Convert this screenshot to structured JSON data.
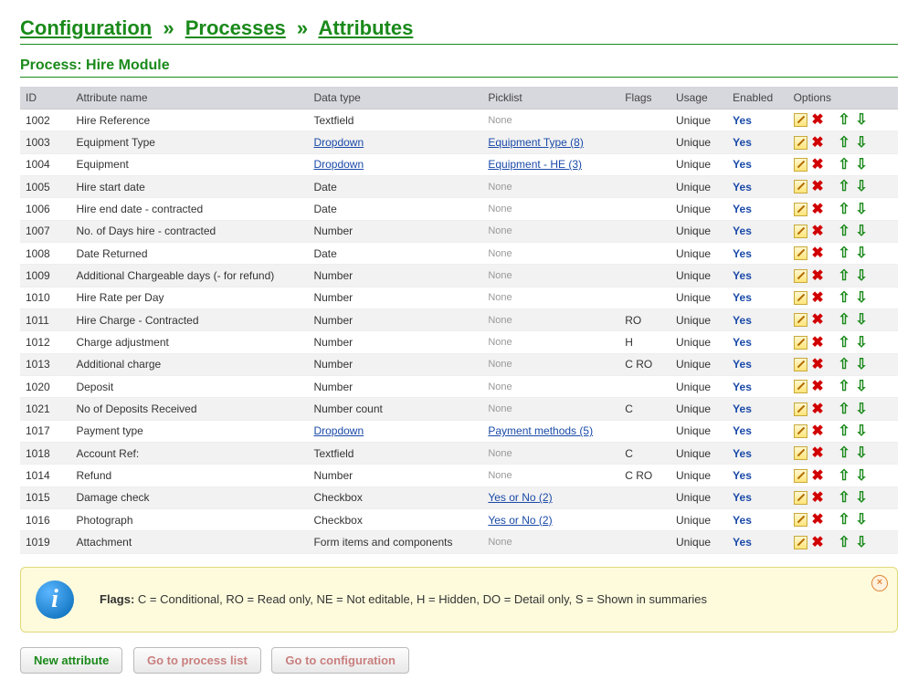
{
  "breadcrumb": {
    "items": [
      "Configuration",
      "Processes",
      "Attributes"
    ],
    "separator": "»"
  },
  "subheader": "Process: Hire Module",
  "table": {
    "headers": {
      "id": "ID",
      "name": "Attribute name",
      "dtype": "Data type",
      "picklist": "Picklist",
      "flags": "Flags",
      "usage": "Usage",
      "enabled": "Enabled",
      "options": "Options"
    },
    "rows": [
      {
        "id": "1002",
        "name": "Hire Reference",
        "dtype": "Textfield",
        "dtype_link": false,
        "picklist": "None",
        "picklist_link": false,
        "flags": "",
        "usage": "Unique",
        "enabled": "Yes"
      },
      {
        "id": "1003",
        "name": "Equipment Type",
        "dtype": "Dropdown",
        "dtype_link": true,
        "picklist": "Equipment Type (8)",
        "picklist_link": true,
        "flags": "",
        "usage": "Unique",
        "enabled": "Yes"
      },
      {
        "id": "1004",
        "name": "Equipment",
        "dtype": "Dropdown",
        "dtype_link": true,
        "picklist": "Equipment - HE (3)",
        "picklist_link": true,
        "flags": "",
        "usage": "Unique",
        "enabled": "Yes"
      },
      {
        "id": "1005",
        "name": "Hire start date",
        "dtype": "Date",
        "dtype_link": false,
        "picklist": "None",
        "picklist_link": false,
        "flags": "",
        "usage": "Unique",
        "enabled": "Yes"
      },
      {
        "id": "1006",
        "name": "Hire end date - contracted",
        "dtype": "Date",
        "dtype_link": false,
        "picklist": "None",
        "picklist_link": false,
        "flags": "",
        "usage": "Unique",
        "enabled": "Yes"
      },
      {
        "id": "1007",
        "name": "No. of Days hire - contracted",
        "dtype": "Number",
        "dtype_link": false,
        "picklist": "None",
        "picklist_link": false,
        "flags": "",
        "usage": "Unique",
        "enabled": "Yes"
      },
      {
        "id": "1008",
        "name": "Date Returned",
        "dtype": "Date",
        "dtype_link": false,
        "picklist": "None",
        "picklist_link": false,
        "flags": "",
        "usage": "Unique",
        "enabled": "Yes"
      },
      {
        "id": "1009",
        "name": "Additional Chargeable days (- for refund)",
        "dtype": "Number",
        "dtype_link": false,
        "picklist": "None",
        "picklist_link": false,
        "flags": "",
        "usage": "Unique",
        "enabled": "Yes"
      },
      {
        "id": "1010",
        "name": "Hire Rate per Day",
        "dtype": "Number",
        "dtype_link": false,
        "picklist": "None",
        "picklist_link": false,
        "flags": "",
        "usage": "Unique",
        "enabled": "Yes"
      },
      {
        "id": "1011",
        "name": "Hire Charge - Contracted",
        "dtype": "Number",
        "dtype_link": false,
        "picklist": "None",
        "picklist_link": false,
        "flags": "RO",
        "usage": "Unique",
        "enabled": "Yes"
      },
      {
        "id": "1012",
        "name": "Charge adjustment",
        "dtype": "Number",
        "dtype_link": false,
        "picklist": "None",
        "picklist_link": false,
        "flags": "H",
        "usage": "Unique",
        "enabled": "Yes"
      },
      {
        "id": "1013",
        "name": "Additional charge",
        "dtype": "Number",
        "dtype_link": false,
        "picklist": "None",
        "picklist_link": false,
        "flags": "C RO",
        "usage": "Unique",
        "enabled": "Yes"
      },
      {
        "id": "1020",
        "name": "Deposit",
        "dtype": "Number",
        "dtype_link": false,
        "picklist": "None",
        "picklist_link": false,
        "flags": "",
        "usage": "Unique",
        "enabled": "Yes"
      },
      {
        "id": "1021",
        "name": "No of Deposits Received",
        "dtype": "Number count",
        "dtype_link": false,
        "picklist": "None",
        "picklist_link": false,
        "flags": "C",
        "usage": "Unique",
        "enabled": "Yes"
      },
      {
        "id": "1017",
        "name": "Payment type",
        "dtype": "Dropdown",
        "dtype_link": true,
        "picklist": "Payment methods (5)",
        "picklist_link": true,
        "flags": "",
        "usage": "Unique",
        "enabled": "Yes"
      },
      {
        "id": "1018",
        "name": "Account Ref:",
        "dtype": "Textfield",
        "dtype_link": false,
        "picklist": "None",
        "picklist_link": false,
        "flags": "C",
        "usage": "Unique",
        "enabled": "Yes"
      },
      {
        "id": "1014",
        "name": "Refund",
        "dtype": "Number",
        "dtype_link": false,
        "picklist": "None",
        "picklist_link": false,
        "flags": "C RO",
        "usage": "Unique",
        "enabled": "Yes"
      },
      {
        "id": "1015",
        "name": "Damage check",
        "dtype": "Checkbox",
        "dtype_link": false,
        "picklist": "Yes or No (2)",
        "picklist_link": true,
        "flags": "",
        "usage": "Unique",
        "enabled": "Yes"
      },
      {
        "id": "1016",
        "name": "Photograph",
        "dtype": "Checkbox",
        "dtype_link": false,
        "picklist": "Yes or No (2)",
        "picklist_link": true,
        "flags": "",
        "usage": "Unique",
        "enabled": "Yes"
      },
      {
        "id": "1019",
        "name": "Attachment",
        "dtype": "Form items and components",
        "dtype_link": false,
        "picklist": "None",
        "picklist_link": false,
        "flags": "",
        "usage": "Unique",
        "enabled": "Yes"
      }
    ]
  },
  "info": {
    "label": "Flags:",
    "text": "C = Conditional, RO = Read only, NE = Not editable, H = Hidden, DO = Detail only, S = Shown in summaries"
  },
  "buttons": {
    "new_attribute": "New attribute",
    "go_to_process_list": "Go to process list",
    "go_to_configuration": "Go to configuration"
  }
}
